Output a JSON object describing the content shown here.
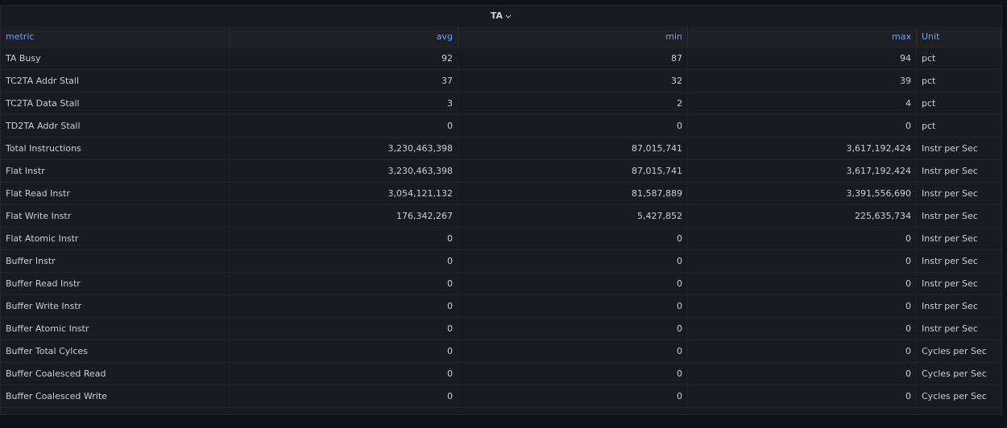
{
  "panel": {
    "title": "TA"
  },
  "table": {
    "columns": [
      "metric",
      "avg",
      "min",
      "max",
      "Unit"
    ],
    "rows": [
      [
        "TA Busy",
        "92",
        "87",
        "94",
        "pct"
      ],
      [
        "TC2TA Addr Stall",
        "37",
        "32",
        "39",
        "pct"
      ],
      [
        "TC2TA Data Stall",
        "3",
        "2",
        "4",
        "pct"
      ],
      [
        "TD2TA Addr Stall",
        "0",
        "0",
        "0",
        "pct"
      ],
      [
        "Total Instructions",
        "3,230,463,398",
        "87,015,741",
        "3,617,192,424",
        "Instr per Sec"
      ],
      [
        "Flat Instr",
        "3,230,463,398",
        "87,015,741",
        "3,617,192,424",
        "Instr per Sec"
      ],
      [
        "Flat Read Instr",
        "3,054,121,132",
        "81,587,889",
        "3,391,556,690",
        "Instr per Sec"
      ],
      [
        "Flat Write Instr",
        "176,342,267",
        "5,427,852",
        "225,635,734",
        "Instr per Sec"
      ],
      [
        "Flat Atomic Instr",
        "0",
        "0",
        "0",
        "Instr per Sec"
      ],
      [
        "Buffer Instr",
        "0",
        "0",
        "0",
        "Instr per Sec"
      ],
      [
        "Buffer Read Instr",
        "0",
        "0",
        "0",
        "Instr per Sec"
      ],
      [
        "Buffer Write Instr",
        "0",
        "0",
        "0",
        "Instr per Sec"
      ],
      [
        "Buffer Atomic Instr",
        "0",
        "0",
        "0",
        "Instr per Sec"
      ],
      [
        "Buffer Total Cylces",
        "0",
        "0",
        "0",
        "Cycles per Sec"
      ],
      [
        "Buffer Coalesced Read",
        "0",
        "0",
        "0",
        "Cycles per Sec"
      ],
      [
        "Buffer Coalesced Write",
        "0",
        "0",
        "0",
        "Cycles per Sec"
      ]
    ]
  }
}
